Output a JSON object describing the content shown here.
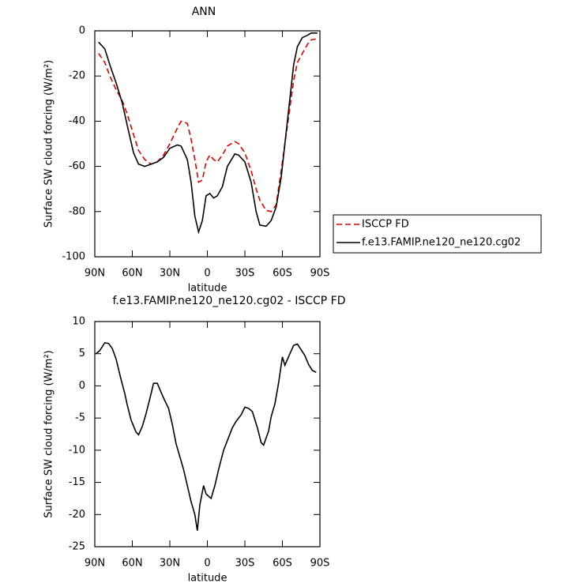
{
  "chart_data": [
    {
      "type": "line",
      "title": "ANN",
      "xlabel": "latitude",
      "ylabel": "Surface SW cloud forcing (W/m²)",
      "x": [
        87,
        82,
        78,
        73,
        68,
        64,
        59,
        55,
        50,
        45,
        40,
        35,
        30,
        24,
        21,
        16,
        13,
        10,
        7,
        4,
        1,
        -2,
        -5,
        -8,
        -12,
        -16,
        -22,
        -25,
        -30,
        -35,
        -39,
        -42,
        -47,
        -51,
        -55,
        -59,
        -64,
        -69,
        -72,
        -76,
        -80,
        -83,
        -88
      ],
      "series": [
        {
          "name": "ISCCP FD",
          "color": "#e00000",
          "line_style": "dashed",
          "values": [
            -10,
            -14,
            -20,
            -26,
            -31,
            -37,
            -46,
            -53,
            -57,
            -59,
            -58,
            -55,
            -50,
            -43,
            -40,
            -41,
            -48,
            -57,
            -67,
            -66,
            -58,
            -55,
            -57,
            -58,
            -55,
            -51,
            -49,
            -50,
            -54,
            -62,
            -70,
            -75,
            -79.5,
            -80,
            -77,
            -62,
            -42,
            -22,
            -14,
            -10,
            -6,
            -4,
            -3.5
          ]
        },
        {
          "name": "f.e13.FAMIP.ne120_ne120.cg02",
          "color": "#000000",
          "line_style": "solid",
          "values": [
            -5,
            -8,
            -15,
            -23,
            -32,
            -42,
            -54,
            -59,
            -60,
            -59,
            -58,
            -56,
            -52,
            -50.5,
            -51,
            -57,
            -67,
            -82,
            -89,
            -84,
            -73,
            -72,
            -74,
            -73,
            -69,
            -60,
            -54.5,
            -55,
            -58,
            -67,
            -80,
            -86,
            -86.5,
            -84,
            -78,
            -65,
            -40,
            -15,
            -7,
            -3,
            -2,
            -1,
            -1
          ]
        }
      ],
      "xlim": [
        90,
        -90
      ],
      "xticks": [
        {
          "value": 90,
          "label": "90N"
        },
        {
          "value": 60,
          "label": "60N"
        },
        {
          "value": 30,
          "label": "30N"
        },
        0,
        {
          "value": -30,
          "label": "30S"
        },
        {
          "value": -60,
          "label": "60S"
        },
        {
          "value": -90,
          "label": "90S"
        }
      ],
      "ylim": [
        -100,
        0
      ],
      "yticks": [
        -100,
        -80,
        -60,
        -40,
        -20,
        0
      ],
      "legend": "right"
    },
    {
      "type": "line",
      "title": "f.e13.FAMIP.ne120_ne120.cg02 - ISCCP FD",
      "xlabel": "latitude",
      "ylabel": "Surface SW cloud forcing (W/m²)",
      "x": [
        89,
        86,
        82,
        79,
        76,
        73,
        69,
        66,
        64,
        61,
        57,
        55,
        52,
        49,
        46,
        43,
        40,
        37,
        34,
        31,
        28,
        25,
        22,
        19,
        16,
        13,
        10,
        8,
        6,
        3,
        1,
        -3,
        -6,
        -9,
        -13,
        -16,
        -20,
        -23,
        -27,
        -30,
        -33,
        -36,
        -40,
        -43,
        -45,
        -49,
        -51,
        -54,
        -57,
        -60,
        -62,
        -66,
        -69,
        -72,
        -75,
        -78,
        -81,
        -84,
        -87
      ],
      "values": [
        5,
        5.5,
        6.7,
        6.6,
        5.8,
        4.2,
        1,
        -1.2,
        -3,
        -5.3,
        -7.2,
        -7.6,
        -6.3,
        -4.3,
        -2,
        0.4,
        0.4,
        -1,
        -2.3,
        -3.5,
        -6,
        -9,
        -11,
        -13,
        -15.5,
        -18,
        -20,
        -22.5,
        -18.5,
        -15.5,
        -16.8,
        -17.5,
        -15.5,
        -13,
        -10,
        -8.5,
        -6.5,
        -5.5,
        -4.5,
        -3.3,
        -3.5,
        -4,
        -6.5,
        -8.8,
        -9.2,
        -7,
        -4.8,
        -2.8,
        0.5,
        4.5,
        3.2,
        5,
        6.3,
        6.5,
        5.6,
        4.7,
        3.3,
        2.4,
        2.1
      ],
      "color": "#000000",
      "xlim": [
        90,
        -90
      ],
      "xticks": [
        {
          "value": 90,
          "label": "90N"
        },
        {
          "value": 60,
          "label": "60N"
        },
        {
          "value": 30,
          "label": "30N"
        },
        0,
        {
          "value": -30,
          "label": "30S"
        },
        {
          "value": -60,
          "label": "60S"
        },
        {
          "value": -90,
          "label": "90S"
        }
      ],
      "ylim": [
        -25,
        10
      ],
      "yticks": [
        -25,
        -20,
        -15,
        -10,
        -5,
        0,
        5,
        10
      ]
    }
  ]
}
